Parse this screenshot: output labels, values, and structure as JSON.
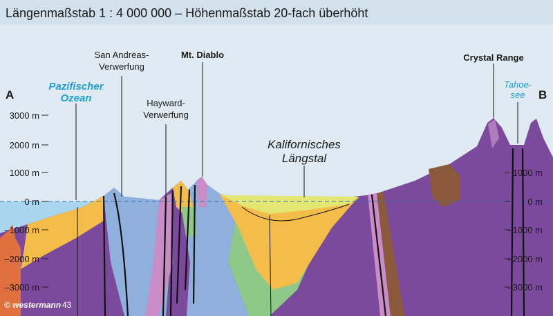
{
  "title": "Längenmaßstab 1 : 4 000 000 – Höhenmaßstab 20-fach überhöht",
  "labels": {
    "a": "A",
    "b": "B",
    "ocean": [
      "Pazifischer",
      "Ozean"
    ],
    "san_andreas": [
      "San Andreas-",
      "Verwerfung"
    ],
    "diablo": "Mt. Diablo",
    "hayward": [
      "Hayward-",
      "Verwerfung"
    ],
    "valley": [
      "Kalifornisches",
      "Längstal"
    ],
    "crystal": "Crystal Range",
    "tahoe": [
      "Tahoe-",
      "see"
    ]
  },
  "left_axis": [
    "3000 m",
    "2000 m",
    "1000 m",
    "0 m",
    "–1000 m",
    "–2000 m",
    "–3000 m"
  ],
  "right_axis": [
    "1000 m",
    "0 m",
    "–1000 m",
    "–2000 m",
    "–3000 m"
  ],
  "credit": "© westermann",
  "page_number": "43"
}
